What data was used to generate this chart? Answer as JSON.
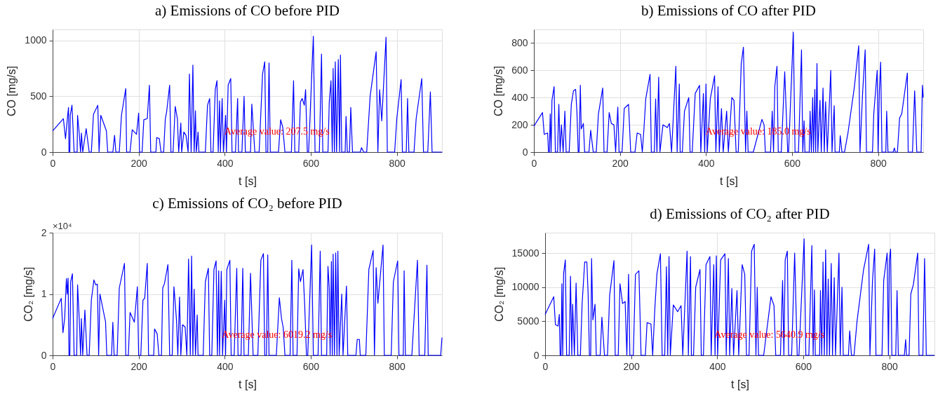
{
  "chart_data": [
    {
      "type": "line",
      "title": "a) Emissions of CO before PID",
      "xlabel": "t [s]",
      "ylabel": "CO [mg/s]",
      "xlim": [
        0,
        905
      ],
      "ylim": [
        0,
        1100
      ],
      "xticks": [
        0,
        200,
        400,
        600,
        800
      ],
      "yticks": [
        0,
        500,
        1000
      ],
      "grid": true,
      "marker": "none",
      "line_style": "solid",
      "annotations": [
        "Average value: 207.5 mg/s"
      ],
      "x": [
        0,
        25,
        30,
        35,
        37,
        38,
        40,
        41,
        45,
        50,
        57,
        58,
        62,
        65,
        67,
        70,
        78,
        85,
        90,
        95,
        105,
        108,
        112,
        125,
        128,
        140,
        144,
        147,
        155,
        160,
        170,
        172,
        180,
        185,
        195,
        200,
        202,
        208,
        212,
        220,
        225,
        228,
        240,
        242,
        248,
        252,
        258,
        262,
        265,
        272,
        275,
        280,
        285,
        290,
        293,
        298,
        300,
        305,
        310,
        315,
        318,
        322,
        326,
        329,
        332,
        334,
        338,
        340,
        355,
        360,
        365,
        368,
        373,
        378,
        382,
        385,
        388,
        390,
        394,
        397,
        402,
        404,
        408,
        414,
        417,
        425,
        430,
        432,
        440,
        445,
        448,
        460,
        463,
        470,
        480,
        488,
        493,
        496,
        500,
        503,
        506,
        525,
        530,
        535,
        540,
        555,
        560,
        563,
        572,
        576,
        580,
        585,
        588,
        592,
        595,
        606,
        610,
        620,
        625,
        628,
        640,
        643,
        647,
        650,
        652,
        655,
        657,
        660,
        664,
        667,
        669,
        672,
        680,
        682,
        685,
        690,
        693,
        697,
        715,
        718,
        723,
        730,
        738,
        752,
        756,
        760,
        765,
        775,
        778,
        795,
        800,
        810,
        813,
        822,
        825,
        828,
        840,
        845,
        858,
        862,
        872,
        878,
        882,
        905
      ],
      "series": [
        {
          "color": "#0000ff",
          "values": [
            190,
            300,
            120,
            330,
            400,
            0,
            0,
            330,
            420,
            0,
            0,
            330,
            160,
            0,
            170,
            0,
            210,
            0,
            0,
            340,
            420,
            0,
            330,
            190,
            0,
            0,
            150,
            0,
            0,
            330,
            570,
            0,
            0,
            200,
            160,
            350,
            0,
            0,
            290,
            300,
            600,
            0,
            0,
            130,
            120,
            0,
            0,
            300,
            360,
            600,
            0,
            0,
            410,
            300,
            0,
            260,
            0,
            180,
            150,
            0,
            700,
            0,
            780,
            0,
            370,
            0,
            180,
            0,
            0,
            420,
            480,
            0,
            0,
            560,
            640,
            0,
            460,
            0,
            480,
            0,
            330,
            0,
            600,
            660,
            0,
            0,
            480,
            0,
            0,
            500,
            0,
            0,
            430,
            0,
            0,
            700,
            810,
            0,
            0,
            800,
            0,
            0,
            290,
            220,
            0,
            0,
            640,
            0,
            0,
            450,
            480,
            420,
            560,
            0,
            0,
            1040,
            0,
            0,
            880,
            0,
            0,
            450,
            640,
            0,
            750,
            0,
            810,
            0,
            830,
            0,
            870,
            0,
            0,
            320,
            0,
            0,
            400,
            0,
            0,
            40,
            0,
            0,
            500,
            900,
            0,
            560,
            280,
            1030,
            0,
            0,
            300,
            650,
            0,
            0,
            480,
            0,
            0,
            300,
            660,
            0,
            0,
            540,
            0,
            0
          ]
        }
      ]
    },
    {
      "type": "line",
      "title": "b) Emissions of CO after PID",
      "xlabel": "t [s]",
      "ylabel": "CO [mg/s]",
      "xlim": [
        0,
        905
      ],
      "ylim": [
        0,
        900
      ],
      "xticks": [
        0,
        200,
        400,
        600,
        800
      ],
      "yticks": [
        0,
        200,
        400,
        600,
        800
      ],
      "grid": true,
      "marker": "none",
      "line_style": "solid",
      "annotations": [
        "Average value: 185.0 mg/s"
      ],
      "x": [
        0,
        20,
        24,
        32,
        34,
        36,
        38,
        40,
        42,
        47,
        50,
        55,
        58,
        61,
        64,
        68,
        72,
        75,
        82,
        87,
        92,
        97,
        100,
        103,
        105,
        108,
        110,
        115,
        118,
        128,
        132,
        138,
        145,
        150,
        160,
        163,
        170,
        175,
        180,
        186,
        190,
        195,
        198,
        205,
        210,
        220,
        225,
        235,
        240,
        248,
        252,
        256,
        260,
        270,
        273,
        280,
        283,
        286,
        290,
        293,
        300,
        310,
        315,
        320,
        330,
        333,
        338,
        340,
        345,
        350,
        360,
        363,
        368,
        375,
        385,
        388,
        394,
        397,
        400,
        403,
        410,
        420,
        423,
        428,
        431,
        436,
        440,
        448,
        452,
        460,
        465,
        470,
        475,
        482,
        487,
        492,
        495,
        498,
        510,
        530,
        535,
        538,
        550,
        554,
        557,
        560,
        565,
        568,
        575,
        583,
        590,
        592,
        603,
        607,
        615,
        622,
        625,
        628,
        630,
        640,
        642,
        645,
        648,
        650,
        653,
        655,
        658,
        660,
        665,
        668,
        672,
        675,
        678,
        682,
        690,
        693,
        698,
        700,
        710,
        712,
        716,
        722,
        730,
        745,
        755,
        758,
        764,
        770,
        773,
        787,
        790,
        798,
        800,
        803,
        806,
        809,
        818,
        820,
        823,
        835,
        838,
        840,
        845,
        850,
        855,
        868,
        870,
        880,
        885,
        890,
        900,
        903,
        905
      ],
      "series": [
        {
          "color": "#0000ff",
          "values": [
            190,
            290,
            130,
            140,
            0,
            0,
            280,
            0,
            380,
            480,
            0,
            0,
            350,
            0,
            200,
            0,
            300,
            0,
            0,
            350,
            450,
            460,
            300,
            0,
            0,
            490,
            170,
            210,
            0,
            0,
            160,
            0,
            0,
            280,
            470,
            0,
            0,
            290,
            210,
            200,
            0,
            330,
            0,
            0,
            320,
            350,
            0,
            0,
            140,
            130,
            0,
            180,
            390,
            570,
            0,
            0,
            390,
            0,
            550,
            0,
            200,
            180,
            210,
            0,
            630,
            0,
            500,
            0,
            0,
            300,
            400,
            0,
            0,
            430,
            490,
            0,
            430,
            0,
            500,
            0,
            390,
            560,
            0,
            480,
            0,
            320,
            0,
            300,
            0,
            400,
            380,
            0,
            0,
            650,
            770,
            0,
            300,
            0,
            0,
            240,
            200,
            0,
            0,
            300,
            0,
            480,
            630,
            0,
            0,
            590,
            0,
            0,
            880,
            0,
            0,
            750,
            0,
            230,
            0,
            0,
            300,
            0,
            400,
            0,
            460,
            0,
            650,
            0,
            380,
            0,
            470,
            0,
            370,
            0,
            600,
            0,
            340,
            0,
            0,
            120,
            0,
            0,
            140,
            480,
            780,
            0,
            430,
            750,
            0,
            0,
            280,
            600,
            0,
            450,
            660,
            0,
            0,
            300,
            0,
            0,
            30,
            0,
            0,
            250,
            280,
            580,
            0,
            0,
            450,
            0,
            0,
            490,
            400
          ]
        }
      ]
    },
    {
      "type": "line",
      "title": "c) Emissions of CO₂ before PID",
      "xlabel": "t [s]",
      "ylabel": "CO₂ [mg/s]",
      "xlim": [
        0,
        905
      ],
      "ylim": [
        0,
        2
      ],
      "xticks": [
        0,
        200,
        400,
        600,
        800
      ],
      "yticks": [
        0,
        1,
        2
      ],
      "grid": true,
      "marker": "none",
      "line_style": "solid",
      "annotations": [
        "×10⁴",
        "Average value: 6019.2 mg/s"
      ],
      "x": [
        0,
        20,
        24,
        28,
        32,
        34,
        36,
        38,
        40,
        42,
        46,
        50,
        56,
        58,
        62,
        65,
        67,
        70,
        75,
        80,
        85,
        90,
        96,
        100,
        104,
        107,
        110,
        120,
        123,
        126,
        137,
        140,
        143,
        150,
        155,
        167,
        170,
        176,
        180,
        190,
        197,
        200,
        205,
        210,
        214,
        220,
        223,
        235,
        237,
        243,
        247,
        253,
        256,
        260,
        268,
        272,
        278,
        282,
        288,
        291,
        295,
        298,
        302,
        308,
        312,
        316,
        320,
        323,
        326,
        329,
        332,
        336,
        338,
        350,
        355,
        362,
        365,
        370,
        375,
        380,
        383,
        386,
        388,
        392,
        395,
        400,
        402,
        405,
        412,
        415,
        422,
        428,
        431,
        438,
        442,
        445,
        455,
        460,
        466,
        477,
        484,
        490,
        493,
        497,
        500,
        503,
        520,
        527,
        532,
        536,
        540,
        552,
        556,
        559,
        568,
        572,
        576,
        582,
        586,
        590,
        593,
        602,
        606,
        617,
        622,
        625,
        637,
        640,
        643,
        645,
        648,
        650,
        652,
        655,
        658,
        661,
        663,
        666,
        672,
        675,
        683,
        686,
        705,
        708,
        713,
        715,
        728,
        735,
        745,
        748,
        752,
        756,
        768,
        771,
        787,
        792,
        802,
        805,
        815,
        817,
        820,
        835,
        840,
        848,
        852,
        865,
        870,
        873,
        902,
        905
      ],
      "series": [
        {
          "color": "#0000ff",
          "values": [
            0.6,
            0.93,
            0.37,
            0.6,
            1.25,
            1.0,
            1.26,
            0,
            0,
            1.2,
            1.33,
            0,
            0,
            1.15,
            0.58,
            0,
            0.6,
            0,
            0.74,
            0,
            0,
            0.9,
            1.23,
            1.15,
            1.16,
            0,
            1.0,
            0.65,
            0.55,
            0,
            0,
            0.54,
            0,
            0,
            1.1,
            1.5,
            0,
            0,
            0.7,
            0.54,
            1.12,
            0,
            0,
            0.9,
            0.93,
            1.5,
            0,
            0,
            0.43,
            0.35,
            0,
            0,
            1.1,
            1.17,
            1.48,
            0,
            0,
            1.12,
            0.57,
            0,
            0.95,
            0,
            0.5,
            0.46,
            0,
            1.57,
            0,
            1.62,
            0,
            1.08,
            0,
            0.66,
            0,
            0,
            1.2,
            1.42,
            0,
            0,
            1.4,
            1.54,
            0,
            1.38,
            0,
            1.37,
            0,
            0.9,
            0,
            1.4,
            1.55,
            0,
            0,
            1.42,
            0,
            0,
            1.42,
            0,
            0,
            1.34,
            0,
            0,
            1.55,
            1.66,
            0,
            0,
            1.64,
            0,
            0,
            0.94,
            0.6,
            0.45,
            0,
            0,
            1.55,
            0,
            0,
            1.41,
            1.2,
            1.4,
            0.8,
            0,
            0,
            1.8,
            0,
            0,
            1.7,
            0,
            0,
            1.45,
            1.1,
            0,
            1.53,
            0,
            1.65,
            0,
            1.67,
            0,
            1.7,
            0,
            1.0,
            0,
            1.13,
            0,
            0,
            0.26,
            0.26,
            0,
            0,
            1.4,
            1.71,
            0,
            1.43,
            0.85,
            1.8,
            0,
            0,
            1.2,
            1.54,
            0,
            0,
            1.38,
            0,
            0,
            0.6,
            1.55,
            0,
            0,
            1.47,
            0,
            0,
            0.29
          ]
        }
      ]
    },
    {
      "type": "line",
      "title": "d) Emissions of CO₂ after PID",
      "xlabel": "t [s]",
      "ylabel": "CO₂ [mg/s]",
      "xlim": [
        0,
        905
      ],
      "ylim": [
        0,
        18000
      ],
      "xticks": [
        0,
        200,
        400,
        600,
        800
      ],
      "yticks": [
        0,
        5000,
        10000,
        15000
      ],
      "grid": true,
      "marker": "none",
      "line_style": "solid",
      "annotations": [
        "Average value: 5640.9 mg/s"
      ],
      "x": [
        0,
        20,
        24,
        30,
        33,
        35,
        37,
        39,
        41,
        43,
        47,
        50,
        56,
        59,
        62,
        64,
        68,
        72,
        76,
        82,
        86,
        92,
        97,
        100,
        103,
        106,
        108,
        111,
        116,
        119,
        128,
        132,
        138,
        145,
        150,
        160,
        163,
        170,
        174,
        180,
        186,
        190,
        194,
        197,
        205,
        210,
        218,
        223,
        233,
        237,
        246,
        250,
        255,
        260,
        268,
        272,
        278,
        282,
        285,
        288,
        291,
        298,
        308,
        316,
        320,
        330,
        333,
        338,
        340,
        345,
        350,
        360,
        363,
        368,
        374,
        383,
        386,
        392,
        395,
        398,
        401,
        408,
        418,
        421,
        426,
        429,
        434,
        438,
        446,
        450,
        458,
        464,
        468,
        474,
        480,
        486,
        490,
        493,
        496,
        508,
        525,
        532,
        536,
        547,
        552,
        555,
        558,
        563,
        566,
        573,
        580,
        586,
        590,
        602,
        606,
        613,
        620,
        623,
        626,
        628,
        638,
        640,
        643,
        646,
        649,
        652,
        655,
        658,
        661,
        665,
        668,
        672,
        675,
        683,
        686,
        690,
        693,
        705,
        708,
        712,
        718,
        725,
        740,
        752,
        755,
        761,
        766,
        769,
        783,
        787,
        795,
        798,
        800,
        803,
        806,
        815,
        818,
        821,
        835,
        838,
        840,
        846,
        850,
        856,
        866,
        869,
        878,
        882,
        886,
        905
      ],
      "series": [
        {
          "color": "#0000ff",
          "values": [
            6000,
            8600,
            4500,
            4300,
            6000,
            0,
            0,
            10500,
            0,
            12000,
            14000,
            0,
            0,
            11600,
            0,
            7500,
            0,
            10600,
            0,
            0,
            7500,
            13700,
            13700,
            9000,
            0,
            0,
            14200,
            5200,
            7500,
            0,
            0,
            5600,
            0,
            0,
            8800,
            13900,
            0,
            0,
            10500,
            7600,
            7900,
            0,
            11900,
            0,
            0,
            11900,
            12400,
            0,
            0,
            4800,
            4600,
            0,
            6800,
            12000,
            14900,
            0,
            0,
            13000,
            0,
            14500,
            0,
            7400,
            6400,
            7300,
            0,
            15300,
            0,
            14500,
            0,
            0,
            10000,
            12600,
            0,
            0,
            13300,
            14500,
            0,
            13300,
            0,
            14600,
            0,
            14000,
            14900,
            0,
            14200,
            0,
            9800,
            0,
            9500,
            0,
            13300,
            11900,
            0,
            0,
            15300,
            16300,
            0,
            10000,
            0,
            0,
            8600,
            7300,
            0,
            0,
            11000,
            0,
            14000,
            15300,
            0,
            0,
            15000,
            0,
            0,
            17100,
            0,
            0,
            16100,
            0,
            9600,
            0,
            0,
            9500,
            0,
            13700,
            0,
            15500,
            0,
            11200,
            0,
            13500,
            0,
            11400,
            0,
            15000,
            0,
            10000,
            0,
            0,
            3600,
            0,
            0,
            5000,
            12500,
            16300,
            0,
            11000,
            15600,
            0,
            0,
            11000,
            15000,
            0,
            14000,
            15600,
            0,
            0,
            9500,
            0,
            0,
            2300,
            0,
            0,
            9000,
            10400,
            15000,
            0,
            0,
            14200,
            0,
            0
          ]
        }
      ]
    }
  ]
}
